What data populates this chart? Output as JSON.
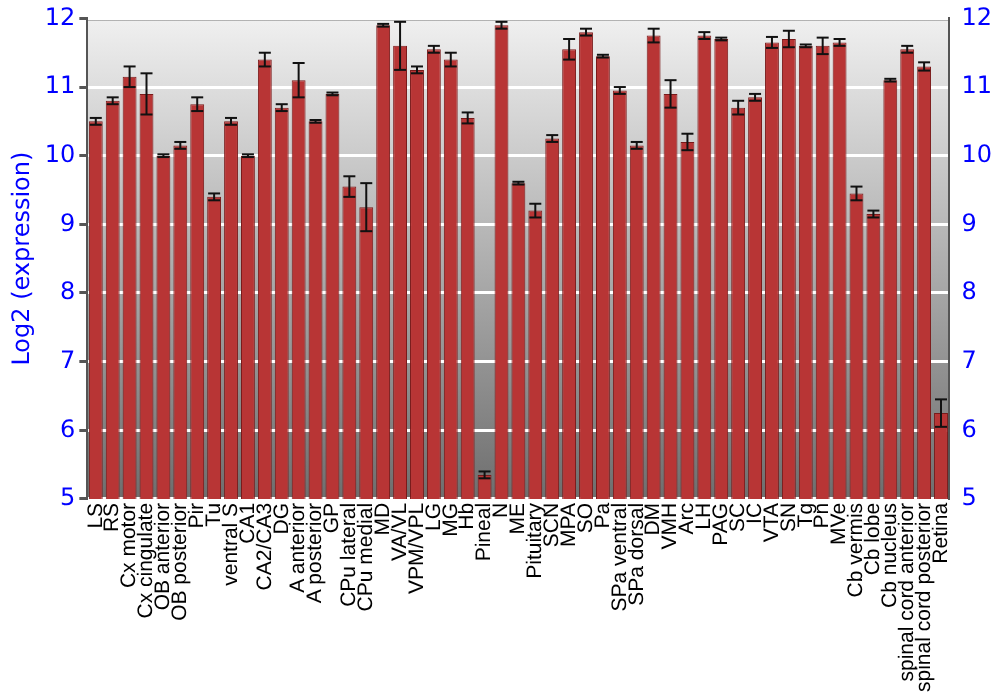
{
  "chart_data": {
    "type": "bar",
    "ylabel": "Log2 (expression)",
    "categories": [
      "LS",
      "RS",
      "Cx motor",
      "Cx cingulate",
      "OB anterior",
      "OB posterior",
      "Pir",
      "Tu",
      "ventral S",
      "CA1",
      "CA2/CA3",
      "DG",
      "A anterior",
      "A posterior",
      "GP",
      "CPu lateral",
      "CPu medial",
      "MD",
      "VA/VL",
      "VPM/VPL",
      "LG",
      "MG",
      "Hb",
      "Pineal",
      "N",
      "ME",
      "Pituitary",
      "SCN",
      "MPA",
      "SO",
      "Pa",
      "SPa ventral",
      "SPa dorsal",
      "DM",
      "VMH",
      "Arc",
      "LH",
      "PAG",
      "SC",
      "IC",
      "VTA",
      "SN",
      "Tg",
      "Pn",
      "MVe",
      "Cb vermis",
      "Cb lobe",
      "Cb nucleus",
      "spinal cord anterior",
      "spinal cord posterior",
      "Retina"
    ],
    "values": [
      10.5,
      10.8,
      11.15,
      10.9,
      10.0,
      10.15,
      10.75,
      9.4,
      10.5,
      10.0,
      11.4,
      10.7,
      11.1,
      10.5,
      10.9,
      9.55,
      9.25,
      11.9,
      11.6,
      11.25,
      11.55,
      11.4,
      10.55,
      5.35,
      11.9,
      9.6,
      9.2,
      10.25,
      11.55,
      11.8,
      11.45,
      10.95,
      10.15,
      11.75,
      10.9,
      10.2,
      11.75,
      11.7,
      10.7,
      10.85,
      11.65,
      11.7,
      11.6,
      11.6,
      11.65,
      9.45,
      9.15,
      11.1,
      11.55,
      11.3,
      6.25
    ],
    "errors": [
      0.05,
      0.05,
      0.15,
      0.3,
      0.02,
      0.05,
      0.1,
      0.05,
      0.05,
      0.02,
      0.1,
      0.05,
      0.25,
      0.02,
      0.02,
      0.15,
      0.35,
      0.02,
      0.35,
      0.05,
      0.05,
      0.1,
      0.08,
      0.05,
      0.05,
      0.02,
      0.1,
      0.05,
      0.15,
      0.05,
      0.02,
      0.05,
      0.05,
      0.1,
      0.2,
      0.12,
      0.05,
      0.02,
      0.1,
      0.05,
      0.08,
      0.12,
      0.02,
      0.12,
      0.05,
      0.1,
      0.05,
      0.02,
      0.05,
      0.06,
      0.2
    ],
    "color": "#b83535",
    "ylim": [
      5,
      12
    ],
    "yticks": [
      5,
      6,
      7,
      8,
      9,
      10,
      11,
      12
    ],
    "y2lim": [
      5,
      12
    ],
    "y2ticks": [
      5,
      6,
      7,
      8,
      9,
      10,
      11,
      12
    ],
    "grid": "y",
    "legend": false
  }
}
